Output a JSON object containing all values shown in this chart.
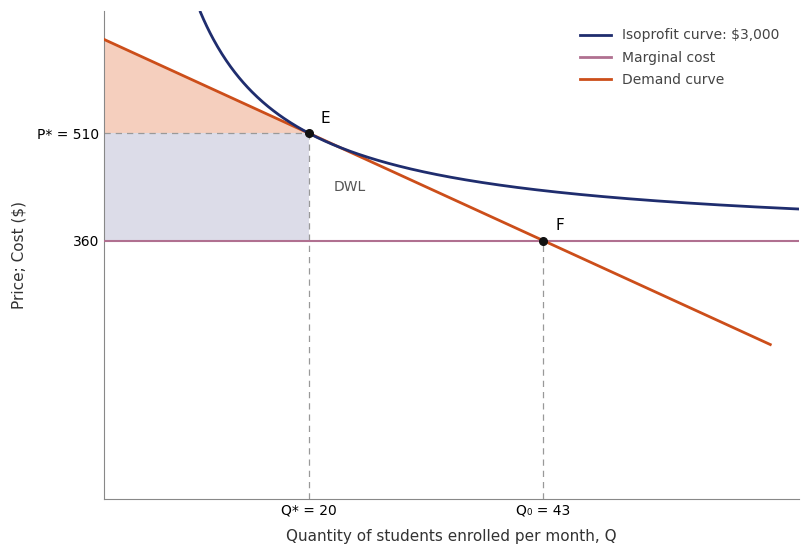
{
  "xlabel": "Quantity of students enrolled per month, Q",
  "ylabel": "Price; Cost ($)",
  "mc": 360,
  "profit": 3000,
  "demand_intercept": 640.43,
  "demand_slope": -6.522,
  "Q_star": 20,
  "P_star": 510,
  "Q0": 43,
  "P0": 360,
  "xlim": [
    0,
    68
  ],
  "ylim": [
    0,
    680
  ],
  "isoprofit_color": "#1f2d6e",
  "mc_color": "#b07090",
  "demand_color": "#cc4e1a",
  "point_color": "#111111",
  "shading_pink": "#f2c0a8",
  "shading_blue": "#c5c5da",
  "legend_isoprofit": "Isoprofit curve: $3,000",
  "legend_mc": "Marginal cost",
  "legend_demand": "Demand curve",
  "label_E": "E",
  "label_F": "F",
  "label_DWL": "DWL",
  "label_Pstar": "P* = 510",
  "label_360": "360",
  "label_Qstar": "Q* = 20",
  "label_Q0": "Q₀ = 43"
}
